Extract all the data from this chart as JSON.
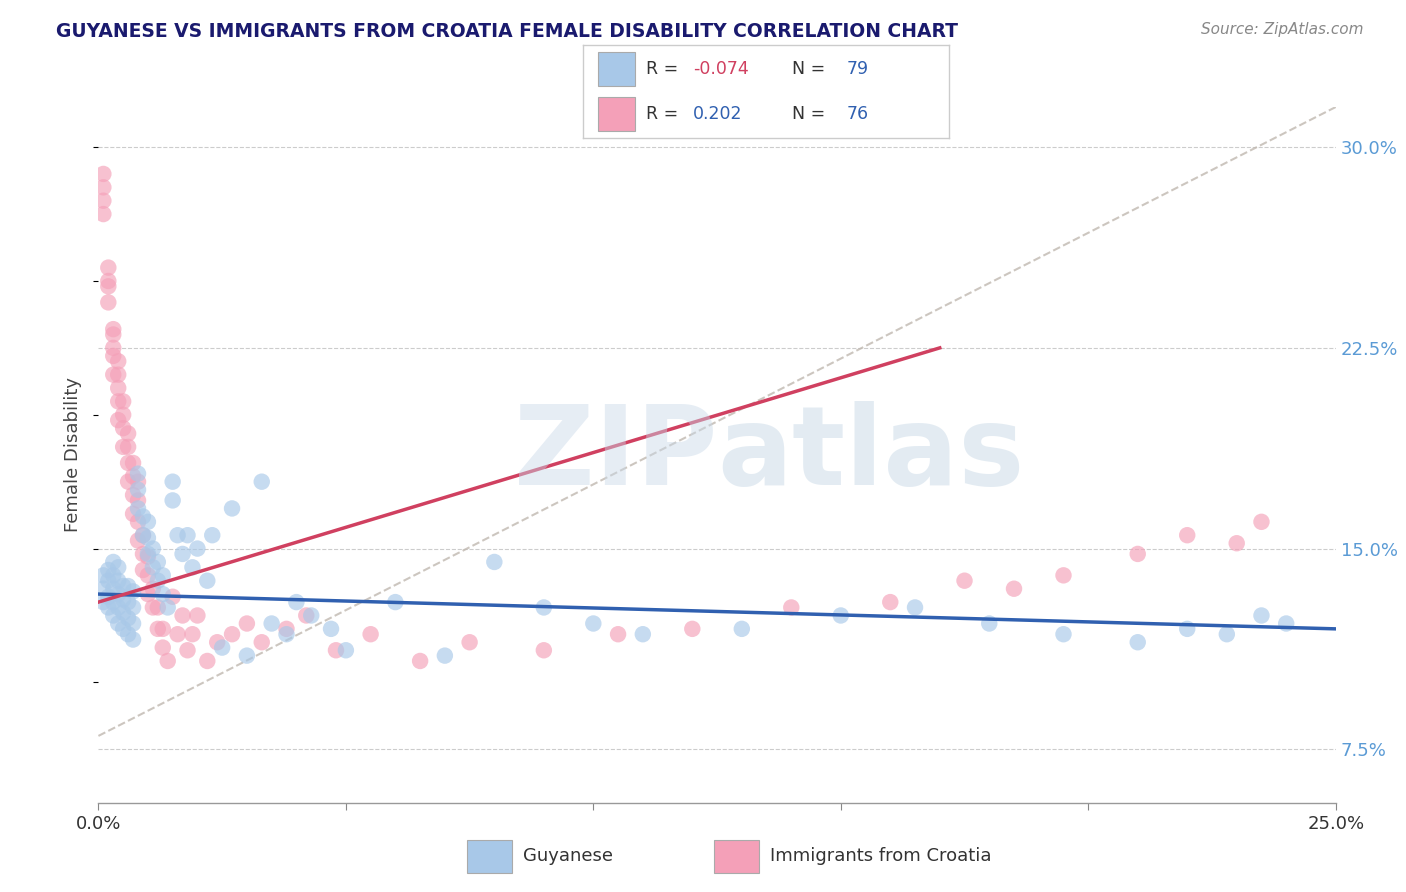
{
  "title": "GUYANESE VS IMMIGRANTS FROM CROATIA FEMALE DISABILITY CORRELATION CHART",
  "source": "Source: ZipAtlas.com",
  "ylabel": "Female Disability",
  "xlim": [
    0.0,
    0.25
  ],
  "ylim": [
    0.055,
    0.315
  ],
  "yticks_right": [
    0.075,
    0.15,
    0.225,
    0.3
  ],
  "yticklabels_right": [
    "7.5%",
    "15.0%",
    "22.5%",
    "30.0%"
  ],
  "legend_label1": "Guyanese",
  "legend_label2": "Immigrants from Croatia",
  "blue_color": "#a8c8e8",
  "pink_color": "#f4a0b8",
  "blue_line_color": "#3060b0",
  "pink_line_color": "#d04060",
  "title_color": "#1a1a6e",
  "watermark_zip": "ZIP",
  "watermark_atlas": "atlas",
  "grid_color": "#cccccc",
  "bg_color": "#ffffff",
  "fig_bg": "#ffffff",
  "guyanese_x": [
    0.001,
    0.001,
    0.001,
    0.002,
    0.002,
    0.002,
    0.002,
    0.003,
    0.003,
    0.003,
    0.003,
    0.003,
    0.004,
    0.004,
    0.004,
    0.004,
    0.004,
    0.005,
    0.005,
    0.005,
    0.005,
    0.006,
    0.006,
    0.006,
    0.006,
    0.007,
    0.007,
    0.007,
    0.007,
    0.008,
    0.008,
    0.008,
    0.009,
    0.009,
    0.01,
    0.01,
    0.01,
    0.011,
    0.011,
    0.012,
    0.012,
    0.013,
    0.013,
    0.014,
    0.015,
    0.015,
    0.016,
    0.017,
    0.018,
    0.019,
    0.02,
    0.022,
    0.023,
    0.025,
    0.027,
    0.03,
    0.033,
    0.035,
    0.038,
    0.04,
    0.043,
    0.047,
    0.05,
    0.06,
    0.07,
    0.08,
    0.09,
    0.1,
    0.11,
    0.13,
    0.15,
    0.165,
    0.18,
    0.195,
    0.21,
    0.22,
    0.228,
    0.235,
    0.24
  ],
  "guyanese_y": [
    0.13,
    0.135,
    0.14,
    0.128,
    0.132,
    0.138,
    0.142,
    0.125,
    0.13,
    0.135,
    0.14,
    0.145,
    0.122,
    0.128,
    0.133,
    0.138,
    0.143,
    0.12,
    0.126,
    0.131,
    0.136,
    0.118,
    0.124,
    0.13,
    0.136,
    0.116,
    0.122,
    0.128,
    0.134,
    0.165,
    0.172,
    0.178,
    0.155,
    0.162,
    0.148,
    0.154,
    0.16,
    0.143,
    0.15,
    0.138,
    0.145,
    0.133,
    0.14,
    0.128,
    0.168,
    0.175,
    0.155,
    0.148,
    0.155,
    0.143,
    0.15,
    0.138,
    0.155,
    0.113,
    0.165,
    0.11,
    0.175,
    0.122,
    0.118,
    0.13,
    0.125,
    0.12,
    0.112,
    0.13,
    0.11,
    0.145,
    0.128,
    0.122,
    0.118,
    0.12,
    0.125,
    0.128,
    0.122,
    0.118,
    0.115,
    0.12,
    0.118,
    0.125,
    0.122
  ],
  "croatia_x": [
    0.001,
    0.001,
    0.001,
    0.001,
    0.002,
    0.002,
    0.002,
    0.002,
    0.003,
    0.003,
    0.003,
    0.003,
    0.003,
    0.004,
    0.004,
    0.004,
    0.004,
    0.004,
    0.005,
    0.005,
    0.005,
    0.005,
    0.006,
    0.006,
    0.006,
    0.006,
    0.007,
    0.007,
    0.007,
    0.007,
    0.008,
    0.008,
    0.008,
    0.008,
    0.009,
    0.009,
    0.009,
    0.01,
    0.01,
    0.01,
    0.011,
    0.011,
    0.012,
    0.012,
    0.013,
    0.013,
    0.014,
    0.015,
    0.016,
    0.017,
    0.018,
    0.019,
    0.02,
    0.022,
    0.024,
    0.027,
    0.03,
    0.033,
    0.038,
    0.042,
    0.048,
    0.055,
    0.065,
    0.075,
    0.09,
    0.105,
    0.12,
    0.14,
    0.16,
    0.175,
    0.185,
    0.195,
    0.21,
    0.22,
    0.23,
    0.235
  ],
  "croatia_y": [
    0.28,
    0.29,
    0.285,
    0.275,
    0.255,
    0.248,
    0.242,
    0.25,
    0.23,
    0.222,
    0.215,
    0.225,
    0.232,
    0.21,
    0.205,
    0.198,
    0.215,
    0.22,
    0.195,
    0.188,
    0.2,
    0.205,
    0.182,
    0.175,
    0.188,
    0.193,
    0.17,
    0.163,
    0.177,
    0.182,
    0.16,
    0.153,
    0.168,
    0.175,
    0.148,
    0.142,
    0.155,
    0.14,
    0.133,
    0.147,
    0.128,
    0.135,
    0.12,
    0.128,
    0.113,
    0.12,
    0.108,
    0.132,
    0.118,
    0.125,
    0.112,
    0.118,
    0.125,
    0.108,
    0.115,
    0.118,
    0.122,
    0.115,
    0.12,
    0.125,
    0.112,
    0.118,
    0.108,
    0.115,
    0.112,
    0.118,
    0.12,
    0.128,
    0.13,
    0.138,
    0.135,
    0.14,
    0.148,
    0.155,
    0.152,
    0.16
  ],
  "dashed_line_x": [
    0.0,
    0.25
  ],
  "dashed_line_y": [
    0.08,
    0.315
  ],
  "pink_line_x": [
    0.0,
    0.17
  ],
  "pink_line_y": [
    0.13,
    0.225
  ],
  "blue_line_x": [
    0.0,
    0.25
  ],
  "blue_line_y": [
    0.133,
    0.12
  ]
}
